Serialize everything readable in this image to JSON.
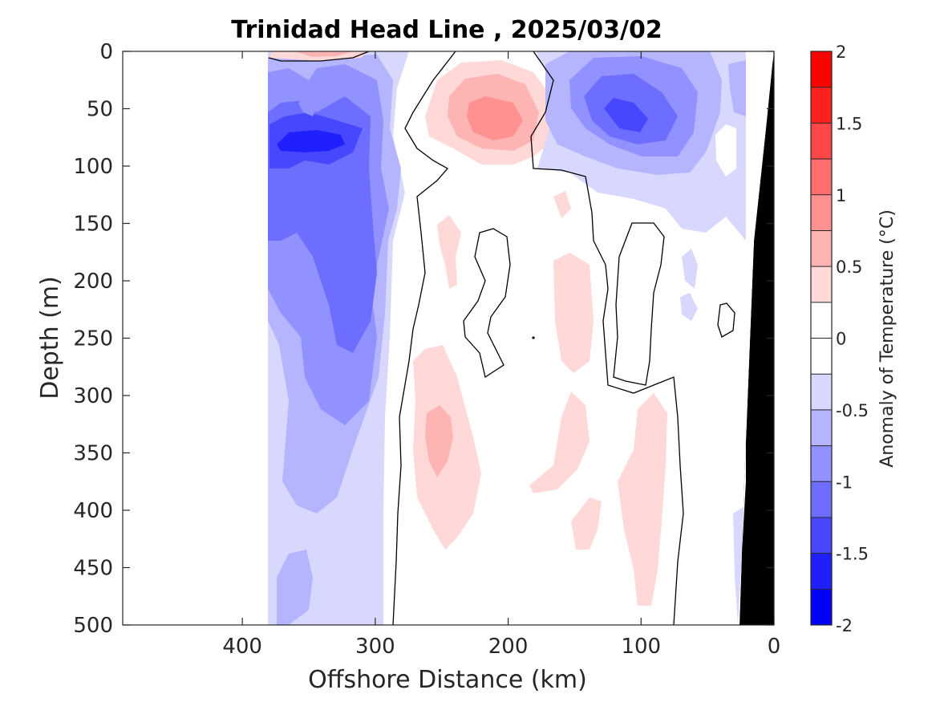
{
  "chart_data": {
    "type": "heatmap",
    "title": "Trinidad Head Line , 2025/03/02",
    "xlabel": "Offshore Distance (km)",
    "ylabel": "Depth (m)",
    "x_reversed": true,
    "xlim": [
      490,
      0
    ],
    "ylim": [
      0,
      500
    ],
    "y_reversed": true,
    "xticks": [
      400,
      300,
      200,
      100,
      0
    ],
    "yticks": [
      0,
      50,
      100,
      150,
      200,
      250,
      300,
      350,
      400,
      450,
      500
    ],
    "colorbar": {
      "label": "Anomaly of Temperature (°C)",
      "range": [
        -2,
        2
      ],
      "ticks": [
        2,
        1.5,
        1,
        0.5,
        0,
        -0.5,
        -1,
        -1.5,
        -2
      ],
      "levels": [
        -2,
        -1.75,
        -1.5,
        -1.25,
        -1,
        -0.75,
        -0.5,
        -0.25,
        0,
        0.25,
        0.5,
        0.75,
        1,
        1.25,
        1.5,
        1.75,
        2
      ],
      "colors": [
        "#0000ff",
        "#2020ff",
        "#4747ff",
        "#6d6dff",
        "#9191ff",
        "#b4b4ff",
        "#d8d8ff",
        "#ffffff",
        "#ffffff",
        "#ffd8d8",
        "#ffb4b4",
        "#ff9191",
        "#ff6d6d",
        "#ff4747",
        "#ff2020",
        "#ff0000"
      ]
    },
    "data_extent_km": [
      380,
      20
    ],
    "bathymetry_color": "#000000",
    "features": [
      {
        "kind": "cold",
        "level": -1.75,
        "center_km": 345,
        "center_depth_m": 78
      },
      {
        "kind": "cold",
        "level": -1.25,
        "center_km": 120,
        "center_depth_m": 55
      },
      {
        "kind": "warm",
        "level": 0.75,
        "center_km": 210,
        "center_depth_m": 55
      },
      {
        "kind": "warm",
        "level": 0.5,
        "center_km": 250,
        "center_depth_m": 335
      },
      {
        "kind": "warm",
        "level": 0.25,
        "center_km": 140,
        "center_depth_m": 200
      },
      {
        "kind": "warm",
        "level": 0.25,
        "center_km": 95,
        "center_depth_m": 400
      }
    ],
    "zero_contour": true,
    "grid": false
  }
}
